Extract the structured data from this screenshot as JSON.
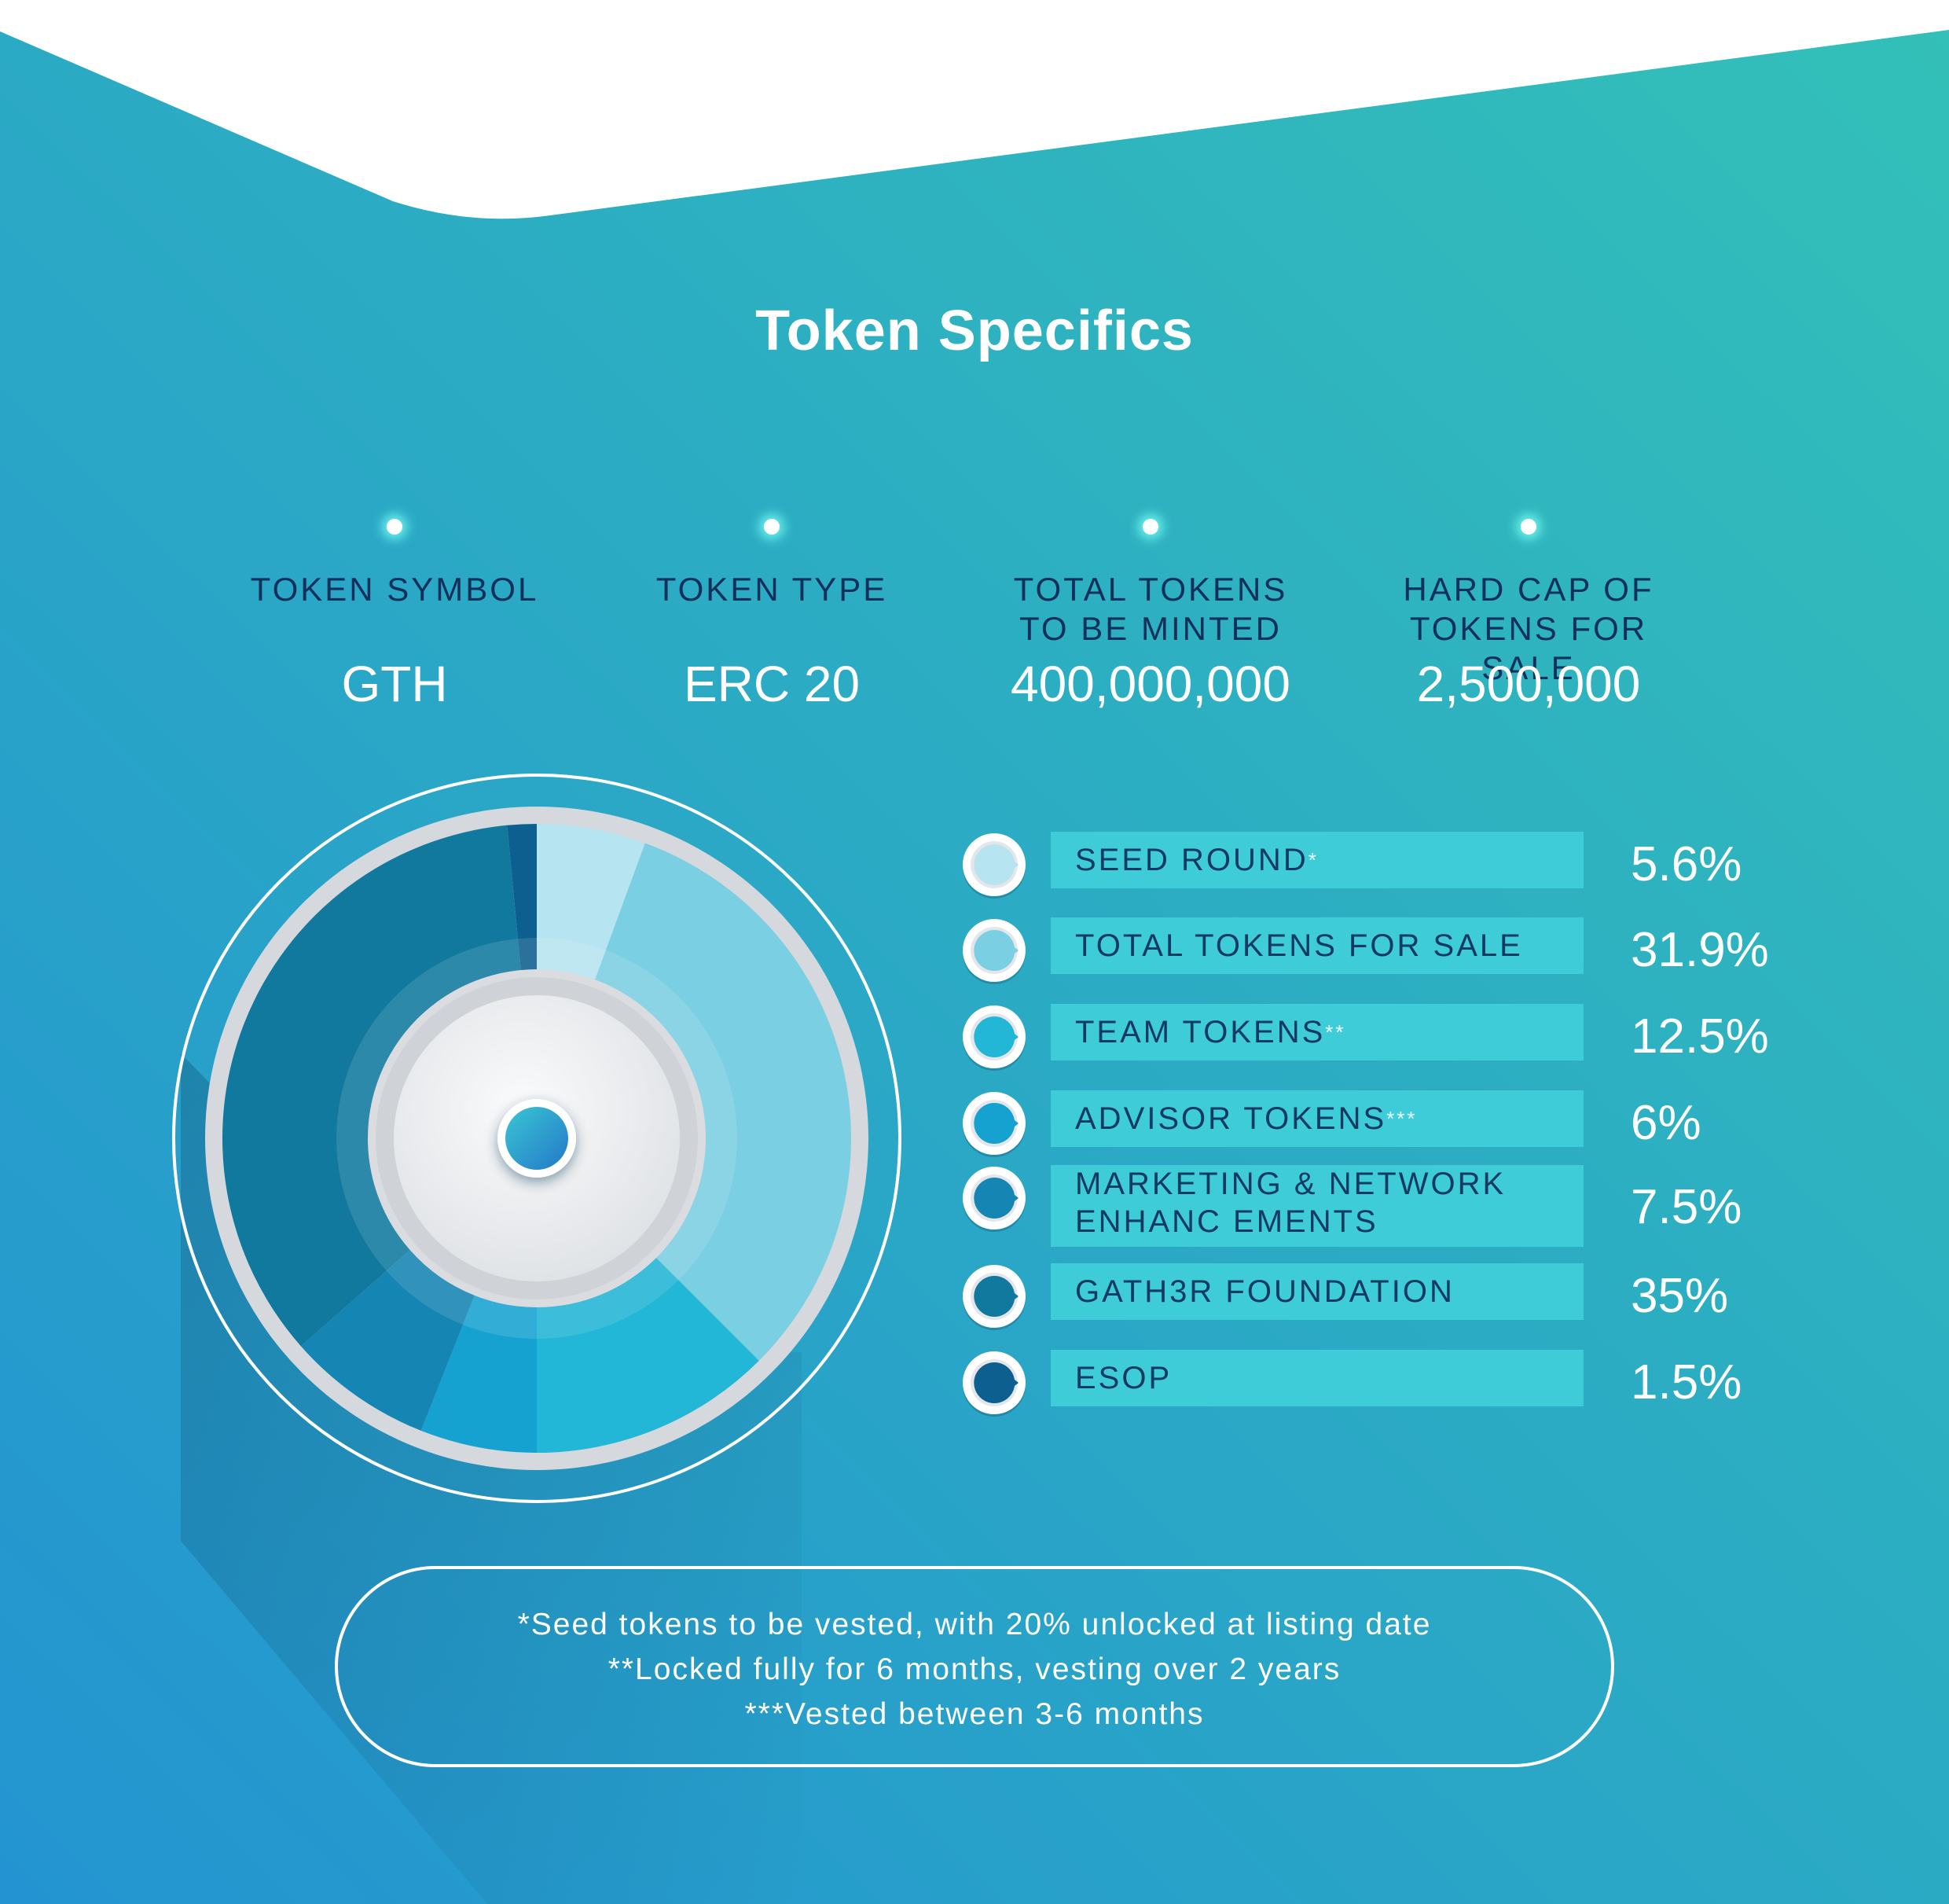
{
  "title": "Token Specifics",
  "specs": [
    {
      "label": "TOKEN SYMBOL",
      "value": "GTH"
    },
    {
      "label": "TOKEN TYPE",
      "value": "ERC 20"
    },
    {
      "label": "TOTAL TOKENS\nTO BE MINTED",
      "value": "400,000,000"
    },
    {
      "label": "HARD CAP OF\nTOKENS FOR SALE",
      "value": "2,500,000"
    }
  ],
  "legend": [
    {
      "label": "SEED ROUND",
      "footnote": "*",
      "value": "5.6%"
    },
    {
      "label": "TOTAL TOKENS FOR SALE",
      "footnote": "",
      "value": "31.9%"
    },
    {
      "label": "TEAM TOKENS",
      "footnote": "**",
      "value": "12.5%"
    },
    {
      "label": "ADVISOR TOKENS",
      "footnote": "***",
      "value": "6%"
    },
    {
      "label": "MARKETING & NETWORK\nENHANC EMENTS",
      "footnote": "",
      "value": "7.5%"
    },
    {
      "label": "GATH3R FOUNDATION",
      "footnote": "",
      "value": "35%"
    },
    {
      "label": "ESOP",
      "footnote": "",
      "value": "1.5%"
    }
  ],
  "notes": [
    "*Seed tokens to be vested, with 20% unlocked at listing date",
    "**Locked fully for 6 months, vesting over 2 years",
    "***Vested between 3-6 months"
  ],
  "colors": {
    "background_start": "#2394d1",
    "background_end": "#33c0b8",
    "legend_bar": "#3ecdd8",
    "label_text": "#123a63"
  },
  "chart_data": {
    "type": "pie",
    "title": "",
    "categories": [
      "SEED ROUND",
      "TOTAL TOKENS FOR SALE",
      "TEAM TOKENS",
      "ADVISOR TOKENS",
      "MARKETING & NETWORK ENHANC EMENTS",
      "GATH3R FOUNDATION",
      "ESOP"
    ],
    "values": [
      5.6,
      31.9,
      12.5,
      6,
      7.5,
      35,
      1.5
    ],
    "colors": [
      "#b6e4f1",
      "#7acfe2",
      "#22b6d7",
      "#16a2d0",
      "#1585b3",
      "#11799e",
      "#0d5f8f"
    ],
    "legend": "right"
  }
}
